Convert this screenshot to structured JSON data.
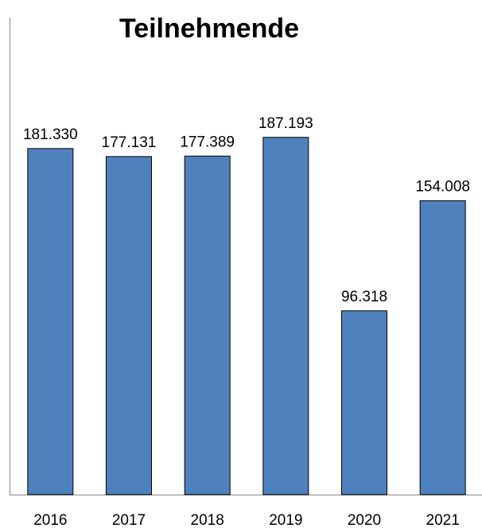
{
  "chart_data": {
    "type": "bar",
    "title": "Teilnehmende",
    "categories": [
      "2016",
      "2017",
      "2018",
      "2019",
      "2020",
      "2021"
    ],
    "values": [
      181330,
      177131,
      177389,
      187193,
      96318,
      154008
    ],
    "value_labels": [
      "181.330",
      "177.131",
      "177.389",
      "187.193",
      "96.318",
      "154.008"
    ],
    "color": "#4f81bd",
    "ylim": [
      0,
      250000
    ]
  }
}
